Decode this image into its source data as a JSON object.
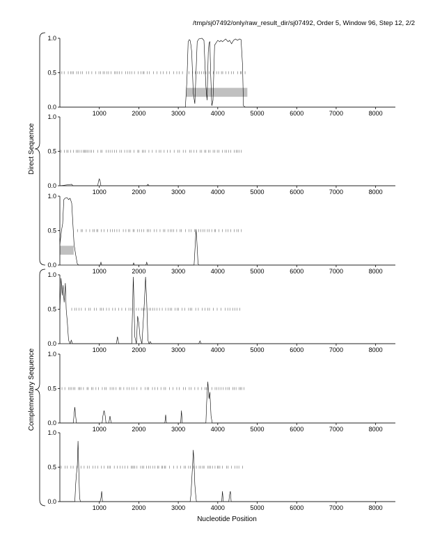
{
  "header": "/tmp/sj07492/only/raw_result_dir/sj07492, Order 5, Window 96, Step 12, 2/2",
  "group_labels": {
    "direct": "Direct Sequence",
    "complementary": "Complementary Sequence"
  },
  "xlabel": "Nucleotide Position",
  "chart_data": {
    "type": "line",
    "xlim": [
      0,
      8500
    ],
    "ylim": [
      0,
      1
    ],
    "x_ticks": [
      1000,
      2000,
      3000,
      4000,
      5000,
      6000,
      7000,
      8000
    ],
    "y_ticks": [
      "0.0",
      "0.5",
      "1.0"
    ],
    "colors": {
      "line": "#000000",
      "axis": "#000000",
      "tick_mark": "#666666",
      "region": "#c0c0c0"
    },
    "panels": [
      {
        "strand": "direct",
        "series": [
          [
            0,
            0
          ],
          [
            3180,
            0
          ],
          [
            3220,
            0.4
          ],
          [
            3250,
            0.95
          ],
          [
            3280,
            0.98
          ],
          [
            3300,
            0.97
          ],
          [
            3320,
            0.9
          ],
          [
            3340,
            0.8
          ],
          [
            3380,
            0.2
          ],
          [
            3420,
            0.05
          ],
          [
            3480,
            0.95
          ],
          [
            3520,
            0.99
          ],
          [
            3600,
            1.0
          ],
          [
            3650,
            0.97
          ],
          [
            3700,
            0.3
          ],
          [
            3730,
            0.1
          ],
          [
            3760,
            0.8
          ],
          [
            3780,
            0.93
          ],
          [
            3800,
            0.95
          ],
          [
            3820,
            0.5
          ],
          [
            3850,
            0.02
          ],
          [
            3880,
            0.1
          ],
          [
            3920,
            0.9
          ],
          [
            4000,
            0.97
          ],
          [
            4050,
            0.95
          ],
          [
            4080,
            0.97
          ],
          [
            4120,
            0.95
          ],
          [
            4200,
            0.99
          ],
          [
            4260,
            0.95
          ],
          [
            4300,
            0.97
          ],
          [
            4350,
            0.92
          ],
          [
            4400,
            0.97
          ],
          [
            4450,
            0.99
          ],
          [
            4500,
            0.97
          ],
          [
            4550,
            0.99
          ],
          [
            4590,
            0.98
          ],
          [
            4630,
            0.6
          ],
          [
            4650,
            0.02
          ],
          [
            4700,
            0
          ],
          [
            8500,
            0
          ]
        ],
        "marks": [
          [
            0,
            3150
          ],
          [
            3250,
            4700
          ]
        ],
        "regions": [
          [
            3200,
            4750,
            0.15,
            0.28
          ]
        ]
      },
      {
        "strand": "direct",
        "series": [
          [
            0,
            0
          ],
          [
            300,
            0.02
          ],
          [
            330,
            0
          ],
          [
            960,
            0
          ],
          [
            980,
            0.07
          ],
          [
            1000,
            0.1
          ],
          [
            1020,
            0.07
          ],
          [
            1040,
            0
          ],
          [
            2200,
            0
          ],
          [
            2230,
            0.02
          ],
          [
            2260,
            0
          ],
          [
            8500,
            0
          ]
        ],
        "marks": [
          [
            0,
            4650
          ]
        ],
        "regions": []
      },
      {
        "strand": "direct",
        "series": [
          [
            0,
            0.3
          ],
          [
            40,
            0.5
          ],
          [
            70,
            0.6
          ],
          [
            100,
            0.95
          ],
          [
            130,
            0.97
          ],
          [
            180,
            0.98
          ],
          [
            220,
            0.95
          ],
          [
            260,
            0.97
          ],
          [
            300,
            0.9
          ],
          [
            330,
            0.6
          ],
          [
            360,
            0.3
          ],
          [
            400,
            0.15
          ],
          [
            440,
            0.02
          ],
          [
            470,
            0
          ],
          [
            1020,
            0
          ],
          [
            1040,
            0.04
          ],
          [
            1060,
            0
          ],
          [
            1850,
            0
          ],
          [
            1870,
            0.03
          ],
          [
            1890,
            0
          ],
          [
            2180,
            0
          ],
          [
            2200,
            0.04
          ],
          [
            2220,
            0
          ],
          [
            3400,
            0
          ],
          [
            3430,
            0.3
          ],
          [
            3450,
            0.52
          ],
          [
            3470,
            0.35
          ],
          [
            3500,
            0.02
          ],
          [
            3520,
            0
          ],
          [
            8500,
            0
          ]
        ],
        "marks": [
          [
            450,
            4650
          ]
        ],
        "regions": [
          [
            0,
            350,
            0.15,
            0.28
          ]
        ]
      },
      {
        "strand": "complementary",
        "series": [
          [
            0,
            0.5
          ],
          [
            30,
            0.95
          ],
          [
            60,
            0.7
          ],
          [
            80,
            0.85
          ],
          [
            110,
            0.6
          ],
          [
            140,
            0.88
          ],
          [
            160,
            0.5
          ],
          [
            190,
            0.3
          ],
          [
            220,
            0.05
          ],
          [
            260,
            0
          ],
          [
            290,
            0.05
          ],
          [
            320,
            0
          ],
          [
            1430,
            0
          ],
          [
            1460,
            0.1
          ],
          [
            1490,
            0
          ],
          [
            1820,
            0
          ],
          [
            1860,
            0.97
          ],
          [
            1900,
            0.1
          ],
          [
            1940,
            0
          ],
          [
            1970,
            0.4
          ],
          [
            2000,
            0.3
          ],
          [
            2030,
            0.1
          ],
          [
            2080,
            0
          ],
          [
            2140,
            0.6
          ],
          [
            2170,
            0.97
          ],
          [
            2200,
            0.6
          ],
          [
            2230,
            0.05
          ],
          [
            2260,
            0
          ],
          [
            2290,
            0.03
          ],
          [
            2320,
            0
          ],
          [
            3520,
            0
          ],
          [
            3550,
            0.04
          ],
          [
            3580,
            0
          ],
          [
            8500,
            0
          ]
        ],
        "marks": [
          [
            300,
            4600
          ]
        ],
        "regions": []
      },
      {
        "strand": "complementary",
        "series": [
          [
            0,
            0
          ],
          [
            340,
            0
          ],
          [
            360,
            0.12
          ],
          [
            380,
            0.23
          ],
          [
            400,
            0.1
          ],
          [
            420,
            0
          ],
          [
            1070,
            0
          ],
          [
            1090,
            0.1
          ],
          [
            1120,
            0.18
          ],
          [
            1150,
            0.1
          ],
          [
            1170,
            0
          ],
          [
            1240,
            0
          ],
          [
            1270,
            0.1
          ],
          [
            1300,
            0
          ],
          [
            2660,
            0
          ],
          [
            2680,
            0.12
          ],
          [
            2700,
            0
          ],
          [
            3060,
            0
          ],
          [
            3080,
            0.18
          ],
          [
            3100,
            0
          ],
          [
            3700,
            0
          ],
          [
            3720,
            0.3
          ],
          [
            3750,
            0.6
          ],
          [
            3780,
            0.35
          ],
          [
            3800,
            0.45
          ],
          [
            3830,
            0.1
          ],
          [
            3860,
            0
          ],
          [
            8500,
            0
          ]
        ],
        "marks": [
          [
            0,
            4700
          ]
        ],
        "regions": []
      },
      {
        "strand": "complementary",
        "series": [
          [
            0,
            0
          ],
          [
            380,
            0
          ],
          [
            400,
            0.25
          ],
          [
            420,
            0.4
          ],
          [
            440,
            0.5
          ],
          [
            460,
            0.88
          ],
          [
            480,
            0.45
          ],
          [
            500,
            0.05
          ],
          [
            520,
            0
          ],
          [
            1020,
            0
          ],
          [
            1040,
            0.05
          ],
          [
            1060,
            0.15
          ],
          [
            1080,
            0
          ],
          [
            3300,
            0
          ],
          [
            3320,
            0.1
          ],
          [
            3340,
            0.3
          ],
          [
            3360,
            0.5
          ],
          [
            3380,
            0.75
          ],
          [
            3400,
            0.55
          ],
          [
            3420,
            0.25
          ],
          [
            3440,
            0.1
          ],
          [
            3460,
            0
          ],
          [
            4100,
            0
          ],
          [
            4120,
            0.15
          ],
          [
            4140,
            0
          ],
          [
            4280,
            0
          ],
          [
            4300,
            0.1
          ],
          [
            4320,
            0.15
          ],
          [
            4340,
            0
          ],
          [
            8500,
            0
          ]
        ],
        "marks": [
          [
            0,
            4650
          ]
        ],
        "regions": []
      }
    ]
  }
}
